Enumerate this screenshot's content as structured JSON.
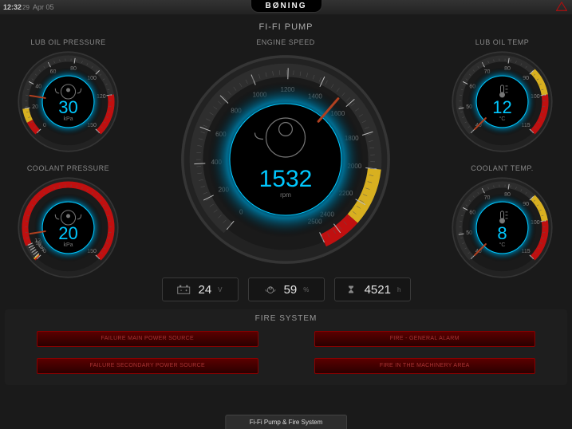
{
  "topbar": {
    "time": "12:32",
    "time_seconds": "29",
    "date": "Apr 05",
    "brand": "BØNING"
  },
  "subtitle": "FI-FI PUMP",
  "colors": {
    "background": "#1a1a1a",
    "panel": "#1e1e1e",
    "accent": "#00c8ff",
    "glow": "#006b8f",
    "text_muted": "#888888",
    "text_light": "#e5e5e5",
    "ring_base": "#353535",
    "ring_dark": "#222222",
    "needle": "#b04020",
    "warn_yellow": "#d8b020",
    "warn_red": "#c01010",
    "alarm_bg": "#3a0000",
    "alarm_border": "#8a0000",
    "alarm_text": "#aa3333"
  },
  "gauges": {
    "lub_oil_pressure": {
      "label": "LUB OIL PRESSURE",
      "value": 30,
      "unit": "kPa",
      "min": 0,
      "max": 150,
      "ticks": [
        0,
        20,
        40,
        60,
        80,
        100,
        120,
        150
      ],
      "warn_low_end": 20,
      "danger_start": 120,
      "start_angle": 135,
      "end_angle": 45
    },
    "coolant_pressure": {
      "label": "COOLANT PRESSURE",
      "value": 20,
      "unit": "kPa",
      "min": 0,
      "max": 150,
      "ticks": [
        0,
        2,
        4,
        6,
        8,
        10,
        12,
        150
      ],
      "warn_low_end": 2,
      "danger_start": 12,
      "start_angle": 135,
      "end_angle": 45
    },
    "engine_speed": {
      "label": "ENGINE SPEED",
      "value": 1532,
      "unit": "rpm",
      "min": 0,
      "max": 2500,
      "ticks": [
        0,
        200,
        400,
        600,
        800,
        1000,
        1200,
        1400,
        1600,
        1800,
        2000,
        2200,
        2400,
        2500
      ],
      "warn_start": 2000,
      "danger_start": 2300,
      "start_angle": 130,
      "end_angle": 65
    },
    "lub_oil_temp": {
      "label": "LUB OIL TEMP",
      "value": 12,
      "unit": "°C",
      "min": 40,
      "max": 115,
      "ticks": [
        40,
        50,
        60,
        70,
        80,
        90,
        100,
        115
      ],
      "warn_start": 90,
      "danger_start": 100,
      "start_angle": 135,
      "end_angle": 45
    },
    "coolant_temp": {
      "label": "COOLANT TEMP.",
      "value": 8,
      "unit": "°C",
      "min": 40,
      "max": 115,
      "ticks": [
        40,
        50,
        60,
        70,
        80,
        90,
        100,
        115
      ],
      "warn_start": 90,
      "danger_start": 100,
      "start_angle": 135,
      "end_angle": 45
    }
  },
  "info": {
    "battery": {
      "value": 24,
      "unit": "V"
    },
    "load": {
      "value": 59,
      "unit": "%"
    },
    "hours": {
      "value": 4521,
      "unit": "h"
    }
  },
  "fire": {
    "title": "FIRE SYSTEM",
    "alarms": [
      "FAILURE MAIN POWER SOURCE",
      "FIRE - GENERAL ALARM",
      "FAILURE SECONDARY POWER SOURCE",
      "FIRE IN THE MACHINERY AREA"
    ]
  },
  "bottom_tab": "Fi-Fi Pump & Fire System"
}
